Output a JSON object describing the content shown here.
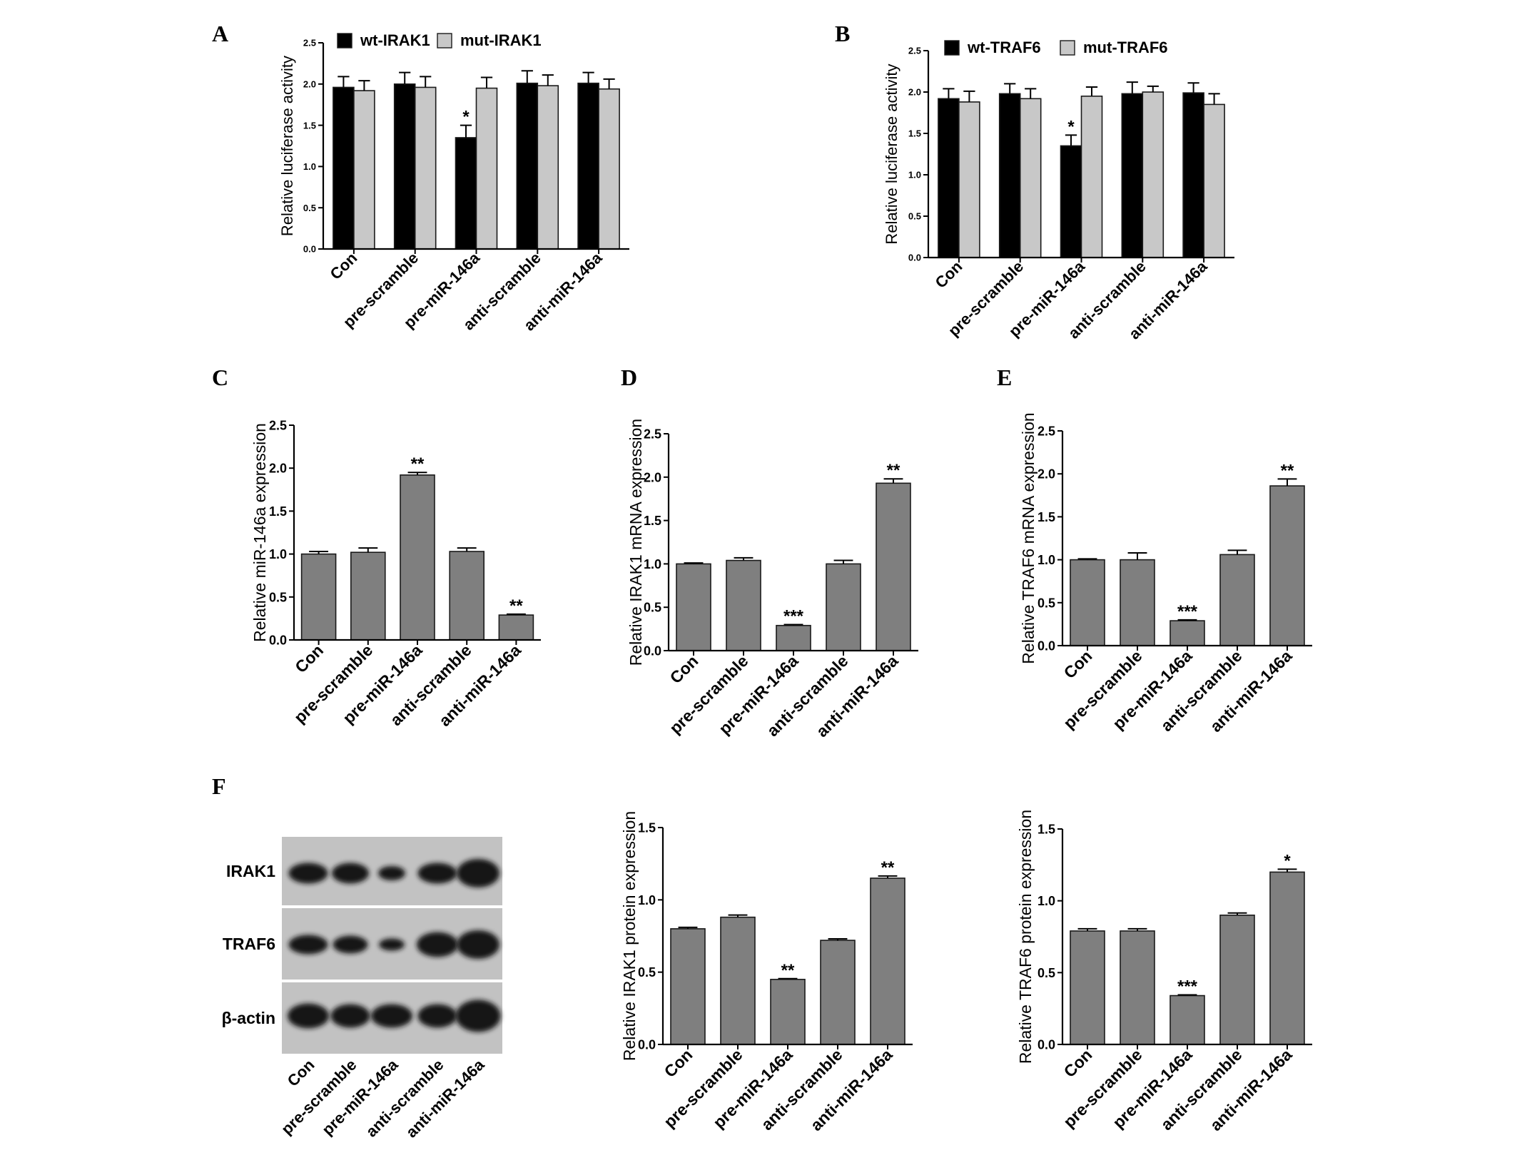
{
  "chart_data": [
    {
      "panel_label": "A",
      "type": "bar",
      "categories": [
        "Con",
        "pre-scramble",
        "pre-miR-146a",
        "anti-scramble",
        "anti-miR-146a"
      ],
      "series": [
        {
          "name": "wt-IRAK1",
          "color": "#000000",
          "values": [
            1.96,
            2.0,
            1.35,
            2.01,
            2.01
          ],
          "errors": [
            0.13,
            0.14,
            0.15,
            0.15,
            0.13
          ]
        },
        {
          "name": "mut-IRAK1",
          "color": "#c8c8c8",
          "values": [
            1.92,
            1.96,
            1.95,
            1.98,
            1.94
          ],
          "errors": [
            0.12,
            0.13,
            0.13,
            0.13,
            0.12
          ]
        }
      ],
      "annotations": [
        {
          "category": 2,
          "series": 0,
          "text": "*"
        }
      ],
      "ylabel": "Relative luciferase activity",
      "ylim": [
        0,
        2.5
      ],
      "yticks": [
        "0.0",
        "0.5",
        "1.0",
        "1.5",
        "2.0",
        "2.5"
      ],
      "legend": "top-left"
    },
    {
      "panel_label": "B",
      "type": "bar",
      "categories": [
        "Con",
        "pre-scramble",
        "pre-miR-146a",
        "anti-scramble",
        "anti-miR-146a"
      ],
      "series": [
        {
          "name": "wt-TRAF6",
          "color": "#000000",
          "values": [
            1.92,
            1.98,
            1.35,
            1.98,
            1.99
          ],
          "errors": [
            0.12,
            0.12,
            0.13,
            0.14,
            0.12
          ]
        },
        {
          "name": "mut-TRAF6",
          "color": "#c8c8c8",
          "values": [
            1.88,
            1.92,
            1.95,
            2.0,
            1.85
          ],
          "errors": [
            0.13,
            0.12,
            0.11,
            0.07,
            0.13
          ]
        }
      ],
      "annotations": [
        {
          "category": 2,
          "series": 0,
          "text": "*"
        }
      ],
      "ylabel": "Relative luciferase activity",
      "ylim": [
        0,
        2.5
      ],
      "yticks": [
        "0.0",
        "0.5",
        "1.0",
        "1.5",
        "2.0",
        "2.5"
      ],
      "legend": "top-left"
    },
    {
      "panel_label": "C",
      "type": "bar",
      "categories": [
        "Con",
        "pre-scramble",
        "pre-miR-146a",
        "anti-scramble",
        "anti-miR-146a"
      ],
      "series": [
        {
          "color": "#7f7f7f",
          "values": [
            1.0,
            1.02,
            1.92,
            1.03,
            0.29
          ],
          "errors": [
            0.03,
            0.05,
            0.03,
            0.04,
            0.01
          ]
        }
      ],
      "annotations": [
        {
          "category": 2,
          "series": 0,
          "text": "**"
        },
        {
          "category": 4,
          "series": 0,
          "text": "**"
        }
      ],
      "ylabel": "Relative miR-146a expression",
      "ylim": [
        0,
        2.5
      ],
      "yticks": [
        "0.0",
        "0.5",
        "1.0",
        "1.5",
        "2.0",
        "2.5"
      ]
    },
    {
      "panel_label": "D",
      "type": "bar",
      "categories": [
        "Con",
        "pre-scramble",
        "pre-miR-146a",
        "anti-scramble",
        "anti-miR-146a"
      ],
      "series": [
        {
          "color": "#7f7f7f",
          "values": [
            1.0,
            1.04,
            0.29,
            1.0,
            1.93
          ],
          "errors": [
            0.01,
            0.03,
            0.01,
            0.04,
            0.05
          ]
        }
      ],
      "annotations": [
        {
          "category": 2,
          "series": 0,
          "text": "***"
        },
        {
          "category": 4,
          "series": 0,
          "text": "**"
        }
      ],
      "ylabel": "Relative IRAK1 mRNA expression",
      "ylim": [
        0,
        2.5
      ],
      "yticks": [
        "0.0",
        "0.5",
        "1.0",
        "1.5",
        "2.0",
        "2.5"
      ]
    },
    {
      "panel_label": "E",
      "type": "bar",
      "categories": [
        "Con",
        "pre-scramble",
        "pre-miR-146a",
        "anti-scramble",
        "anti-miR-146a"
      ],
      "series": [
        {
          "color": "#7f7f7f",
          "values": [
            1.0,
            1.0,
            0.29,
            1.06,
            1.86
          ],
          "errors": [
            0.01,
            0.08,
            0.01,
            0.05,
            0.08
          ]
        }
      ],
      "annotations": [
        {
          "category": 2,
          "series": 0,
          "text": "***"
        },
        {
          "category": 4,
          "series": 0,
          "text": "**"
        }
      ],
      "ylabel": "Relative TRAF6 mRNA expression",
      "ylim": [
        0,
        2.5
      ],
      "yticks": [
        "0.0",
        "0.5",
        "1.0",
        "1.5",
        "2.0",
        "2.5"
      ]
    },
    {
      "type": "bar",
      "categories": [
        "Con",
        "pre-scramble",
        "pre-miR-146a",
        "anti-scramble",
        "anti-miR-146a"
      ],
      "series": [
        {
          "color": "#7f7f7f",
          "values": [
            0.8,
            0.88,
            0.45,
            0.72,
            1.15
          ],
          "errors": [
            0.01,
            0.015,
            0.005,
            0.01,
            0.015
          ]
        }
      ],
      "annotations": [
        {
          "category": 2,
          "series": 0,
          "text": "**"
        },
        {
          "category": 4,
          "series": 0,
          "text": "**"
        }
      ],
      "ylabel": "Relative IRAK1 protein expression",
      "ylim": [
        0,
        1.5
      ],
      "yticks": [
        "0.0",
        "0.5",
        "1.0",
        "1.5"
      ]
    },
    {
      "type": "bar",
      "categories": [
        "Con",
        "pre-scramble",
        "pre-miR-146a",
        "anti-scramble",
        "anti-miR-146a"
      ],
      "series": [
        {
          "color": "#7f7f7f",
          "values": [
            0.79,
            0.79,
            0.34,
            0.9,
            1.2
          ],
          "errors": [
            0.015,
            0.015,
            0.005,
            0.015,
            0.02
          ]
        }
      ],
      "annotations": [
        {
          "category": 2,
          "series": 0,
          "text": "***"
        },
        {
          "category": 4,
          "series": 0,
          "text": "*"
        }
      ],
      "ylabel": "Relative TRAF6 protein expression",
      "ylim": [
        0,
        1.5
      ],
      "yticks": [
        "0.0",
        "0.5",
        "1.0",
        "1.5"
      ]
    }
  ],
  "blot": {
    "panel_label": "F",
    "rows": [
      "IRAK1",
      "TRAF6",
      "β-actin"
    ],
    "lanes": [
      "Con",
      "pre-scramble",
      "pre-miR-146a",
      "anti-scramble",
      "anti-miR-146a"
    ]
  }
}
